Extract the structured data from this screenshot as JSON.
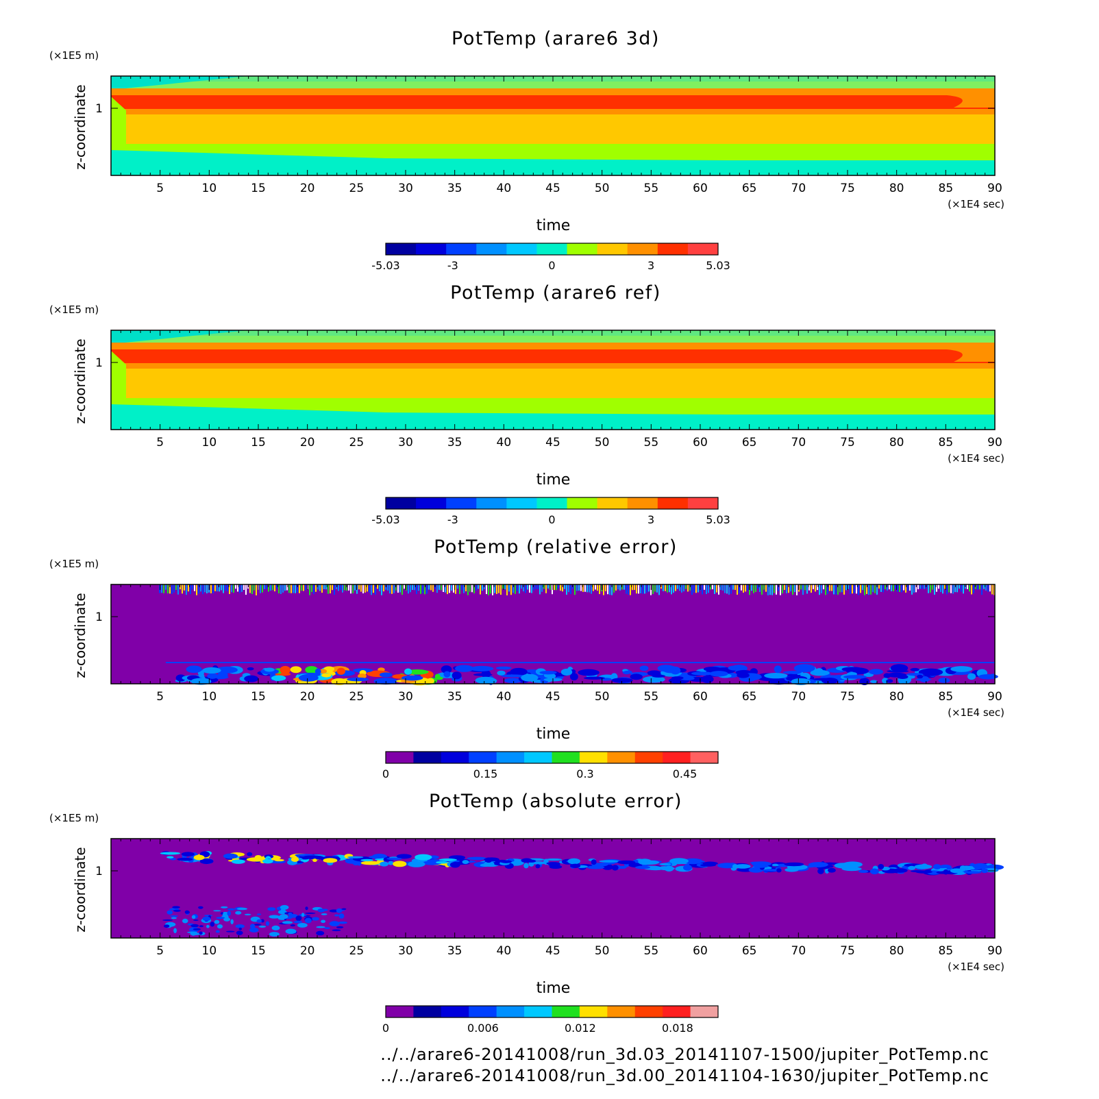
{
  "chart_data": [
    {
      "type": "heatmap",
      "title": "PotTemp (arare6 3d)",
      "xlabel": "time",
      "ylabel": "z-coordinate",
      "x_unit": "(×1E4 sec)",
      "y_unit": "(×1E5 m)",
      "xlim": [
        0,
        90
      ],
      "x_ticks": [
        "5",
        "10",
        "15",
        "20",
        "25",
        "30",
        "35",
        "40",
        "45",
        "50",
        "55",
        "60",
        "65",
        "70",
        "75",
        "80",
        "85",
        "90"
      ],
      "y_ticks": [
        "1"
      ],
      "colorbar": {
        "levels": [
          -5.03,
          5.03
        ],
        "tick_labels": [
          "-5.03",
          "-3",
          "0",
          "3",
          "5.03"
        ],
        "tick_values": [
          -5.03,
          -3,
          0,
          3,
          5.03
        ],
        "colors": [
          "#0000a0",
          "#0000dc",
          "#0040ff",
          "#0090ff",
          "#00c8ff",
          "#00f0c8",
          "#a0ff00",
          "#ffc800",
          "#ff9000",
          "#ff3000",
          "#ff4040"
        ]
      },
      "field_bands_top_to_bottom": [
        {
          "level": "cyan-green",
          "color": "#60f060"
        },
        {
          "level": "orange",
          "color": "#ff9000"
        },
        {
          "level": "red",
          "color": "#ff3000"
        },
        {
          "level": "orange",
          "color": "#ff9000"
        },
        {
          "level": "yellow-orange",
          "color": "#ffc800"
        },
        {
          "level": "yellow-green",
          "color": "#a0ff00"
        },
        {
          "level": "cyan",
          "color": "#00f0c8"
        }
      ]
    },
    {
      "type": "heatmap",
      "title": "PotTemp (arare6 ref)",
      "xlabel": "time",
      "ylabel": "z-coordinate",
      "x_unit": "(×1E4 sec)",
      "y_unit": "(×1E5 m)",
      "xlim": [
        0,
        90
      ],
      "x_ticks": [
        "5",
        "10",
        "15",
        "20",
        "25",
        "30",
        "35",
        "40",
        "45",
        "50",
        "55",
        "60",
        "65",
        "70",
        "75",
        "80",
        "85",
        "90"
      ],
      "y_ticks": [
        "1"
      ],
      "colorbar": {
        "levels": [
          -5.03,
          5.03
        ],
        "tick_labels": [
          "-5.03",
          "-3",
          "0",
          "3",
          "5.03"
        ],
        "tick_values": [
          -5.03,
          -3,
          0,
          3,
          5.03
        ],
        "colors": [
          "#0000a0",
          "#0000dc",
          "#0040ff",
          "#0090ff",
          "#00c8ff",
          "#00f0c8",
          "#a0ff00",
          "#ffc800",
          "#ff9000",
          "#ff3000",
          "#ff4040"
        ]
      }
    },
    {
      "type": "heatmap",
      "title": "PotTemp (relative error)",
      "xlabel": "time",
      "ylabel": "z-coordinate",
      "x_unit": "(×1E4 sec)",
      "y_unit": "(×1E5 m)",
      "xlim": [
        0,
        90
      ],
      "x_ticks": [
        "5",
        "10",
        "15",
        "20",
        "25",
        "30",
        "35",
        "40",
        "45",
        "50",
        "55",
        "60",
        "65",
        "70",
        "75",
        "80",
        "85",
        "90"
      ],
      "y_ticks": [
        "1"
      ],
      "colorbar": {
        "levels": [
          0,
          0.5
        ],
        "tick_labels": [
          "0",
          "0.15",
          "0.3",
          "0.45"
        ],
        "tick_values": [
          0,
          0.15,
          0.3,
          0.45
        ],
        "colors": [
          "#8000a8",
          "#0000a0",
          "#0000dc",
          "#0040ff",
          "#0090ff",
          "#00c8ff",
          "#20e020",
          "#ffe000",
          "#ff9000",
          "#ff4000",
          "#ff2020",
          "#ff6060"
        ]
      }
    },
    {
      "type": "heatmap",
      "title": "PotTemp (absolute error)",
      "xlabel": "time",
      "ylabel": "z-coordinate",
      "x_unit": "(×1E4 sec)",
      "y_unit": "(×1E5 m)",
      "xlim": [
        0,
        90
      ],
      "x_ticks": [
        "5",
        "10",
        "15",
        "20",
        "25",
        "30",
        "35",
        "40",
        "45",
        "50",
        "55",
        "60",
        "65",
        "70",
        "75",
        "80",
        "85",
        "90"
      ],
      "y_ticks": [
        "1"
      ],
      "colorbar": {
        "levels": [
          0,
          0.0205
        ],
        "tick_labels": [
          "0",
          "0.006",
          "0.012",
          "0.018"
        ],
        "tick_values": [
          0,
          0.006,
          0.012,
          0.018
        ],
        "colors": [
          "#8000a8",
          "#0000a0",
          "#0000dc",
          "#0040ff",
          "#0090ff",
          "#00c8ff",
          "#20e020",
          "#ffe000",
          "#ff9000",
          "#ff4000",
          "#ff2020",
          "#f0a0a0"
        ]
      }
    }
  ],
  "footer": {
    "line1": "../../arare6-20141008/run_3d.03_20141107-1500/jupiter_PotTemp.nc",
    "line2": "../../arare6-20141008/run_3d.00_20141104-1630/jupiter_PotTemp.nc"
  }
}
